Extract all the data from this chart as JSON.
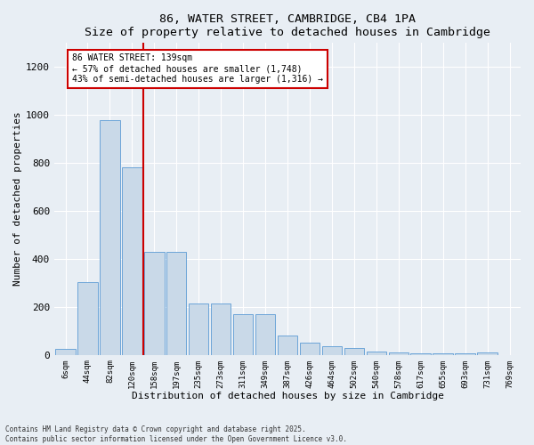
{
  "title": "86, WATER STREET, CAMBRIDGE, CB4 1PA",
  "subtitle": "Size of property relative to detached houses in Cambridge",
  "xlabel": "Distribution of detached houses by size in Cambridge",
  "ylabel": "Number of detached properties",
  "bar_labels": [
    "6sqm",
    "44sqm",
    "82sqm",
    "120sqm",
    "158sqm",
    "197sqm",
    "235sqm",
    "273sqm",
    "311sqm",
    "349sqm",
    "387sqm",
    "426sqm",
    "464sqm",
    "502sqm",
    "540sqm",
    "578sqm",
    "617sqm",
    "655sqm",
    "693sqm",
    "731sqm",
    "769sqm"
  ],
  "bar_values": [
    25,
    305,
    980,
    780,
    430,
    430,
    215,
    215,
    170,
    170,
    80,
    50,
    35,
    30,
    15,
    10,
    5,
    5,
    5,
    10,
    0
  ],
  "bar_color": "#c9d9e8",
  "bar_edgecolor": "#5b9bd5",
  "vline_x": 3.5,
  "vline_color": "#cc0000",
  "annotation_line1": "86 WATER STREET: 139sqm",
  "annotation_line2": "← 57% of detached houses are smaller (1,748)",
  "annotation_line3": "43% of semi-detached houses are larger (1,316) →",
  "annotation_box_color": "#cc0000",
  "ylim": [
    0,
    1300
  ],
  "yticks": [
    0,
    200,
    400,
    600,
    800,
    1000,
    1200
  ],
  "background_color": "#e8eef4",
  "grid_color": "#ffffff",
  "footer_line1": "Contains HM Land Registry data © Crown copyright and database right 2025.",
  "footer_line2": "Contains public sector information licensed under the Open Government Licence v3.0."
}
